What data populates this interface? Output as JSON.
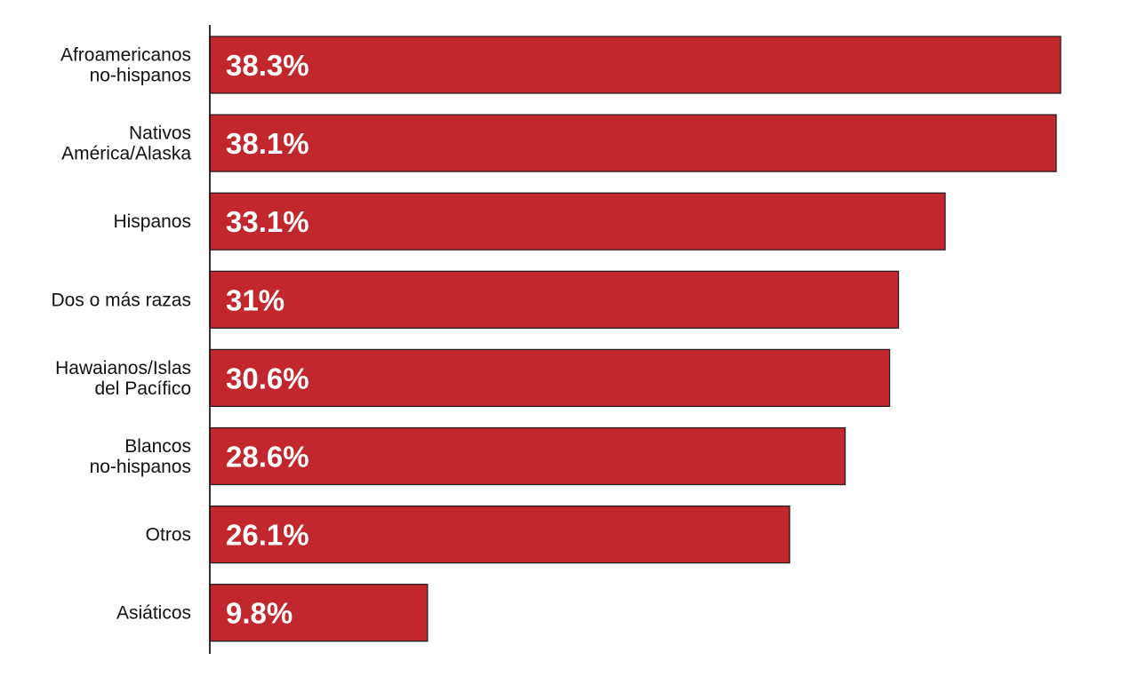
{
  "chart_data": {
    "type": "bar",
    "orientation": "horizontal",
    "categories": [
      [
        "Afroamericanos",
        "no-hispanos"
      ],
      [
        "Nativos",
        "América/Alaska"
      ],
      [
        "Hispanos"
      ],
      [
        "Dos o más razas"
      ],
      [
        "Hawaianos/Islas",
        "del Pacífico"
      ],
      [
        "Blancos",
        "no-hispanos"
      ],
      [
        "Otros"
      ],
      [
        "Asiáticos"
      ]
    ],
    "values": [
      38.3,
      38.1,
      33.1,
      31,
      30.6,
      28.6,
      26.1,
      9.8
    ],
    "value_labels": [
      "38.3%",
      "38.1%",
      "33.1%",
      "31%",
      "30.6%",
      "28.6%",
      "26.1%",
      "9.8%"
    ],
    "xlim": [
      0,
      38.3
    ],
    "grid": false,
    "legend": "none",
    "bar_color": "#c1272d",
    "bar_outline_color": "#1a1a1a",
    "value_label_color": "#ffffff",
    "category_label_color": "#111111"
  }
}
